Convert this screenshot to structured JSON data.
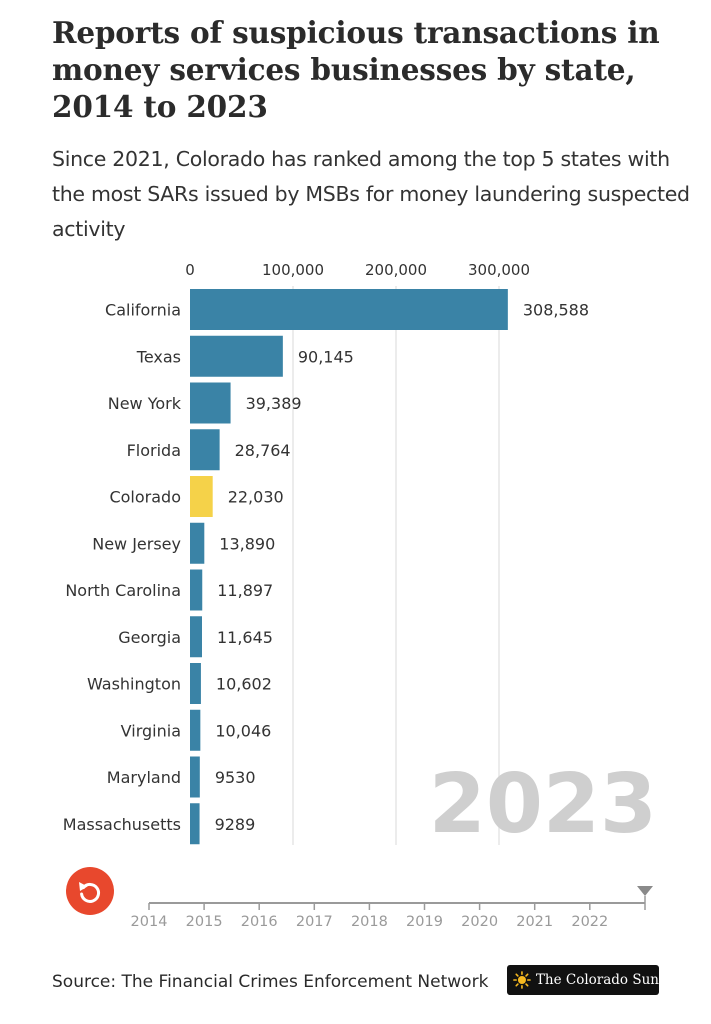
{
  "header": {
    "title": "Reports of suspicious transactions in money services businesses by state, 2014 to 2023",
    "subtitle": "Since 2021, Colorado has ranked among the top 5 states with the most SARs issued by MSBs for money laundering suspected activity"
  },
  "chart_data": {
    "type": "bar",
    "orientation": "horizontal",
    "title": "Reports of suspicious transactions in money services businesses by state, 2014 to 2023",
    "current_year": "2023",
    "categories": [
      "California",
      "Texas",
      "New York",
      "Florida",
      "Colorado",
      "New Jersey",
      "North Carolina",
      "Georgia",
      "Washington",
      "Virginia",
      "Maryland",
      "Massachusetts"
    ],
    "values": [
      308588,
      90145,
      39389,
      28764,
      22030,
      13890,
      11897,
      11645,
      10602,
      10046,
      9530,
      9289
    ],
    "value_labels": [
      "308,588",
      "90,145",
      "39,389",
      "28,764",
      "22,030",
      "13,890",
      "11,897",
      "11,645",
      "10,602",
      "10,046",
      "9530",
      "9289"
    ],
    "highlight": "Colorado",
    "xlim": [
      0,
      350000
    ],
    "x_ticks": [
      0,
      100000,
      200000,
      300000
    ],
    "x_tick_labels": [
      "0",
      "100,000",
      "200,000",
      "300,000"
    ],
    "xlabel": "",
    "ylabel": "",
    "grid": true,
    "colors": {
      "default": "#3a83a6",
      "highlight": "#f5d249",
      "grid": "#e6e6e6"
    }
  },
  "timeline": {
    "years": [
      "2014",
      "2015",
      "2016",
      "2017",
      "2018",
      "2019",
      "2020",
      "2021",
      "2022"
    ],
    "replay_icon": "replay-icon",
    "accent": "#e8482d"
  },
  "footer": {
    "source": "Source: The Financial Crimes Enforcement Network",
    "logo_text": "The Colorado Sun",
    "logo_icon": "sun-icon"
  }
}
